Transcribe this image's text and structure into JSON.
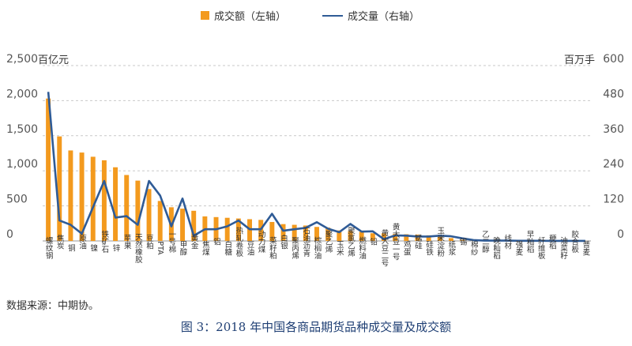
{
  "legend": {
    "bar_label": "成交额（左轴）",
    "line_label": "成交量（右轴）"
  },
  "units": {
    "left": "百亿元",
    "right": "百万手"
  },
  "source": "数据来源：中期协。",
  "caption": "图 3：2018 年中国各商品期货品种成交量及成交额",
  "colors": {
    "bar": "#F39A1E",
    "line": "#2F5B96",
    "grid": "#C9C9C9",
    "axis": "#555555"
  },
  "chart_data": {
    "type": "bar",
    "title": "",
    "categories": [
      "螺纹钢",
      "焦炭",
      "铜",
      "原油",
      "镍",
      "铁矿石",
      "锌",
      "苹果",
      "天然橡胶",
      "豆粕",
      "PTA",
      "一号棉",
      "甲醇",
      "黄金",
      "焦煤",
      "铝",
      "白糖",
      "热轧卷板",
      "豆油",
      "动力煤",
      "菜籽粕",
      "白银",
      "聚丙烯",
      "石油沥青",
      "棕榈油",
      "聚乙烯",
      "玉米",
      "聚氯乙烯",
      "燃料油",
      "铅",
      "黄大豆二号",
      "黄大豆一号",
      "鸡蛋",
      "锰硅",
      "硅铁",
      "玉米淀粉",
      "纸浆",
      "锡",
      "棉纱",
      "乙二醇",
      "晚籼稻",
      "线材",
      "强麦",
      "早籼稻",
      "纤维板",
      "粳稻",
      "油菜籽",
      "胶合板",
      "普麦"
    ],
    "left_axis": {
      "ylim": [
        0,
        2500
      ],
      "ticks": [
        "0",
        "500",
        "1,000",
        "1,500",
        "2,000",
        "2,500"
      ]
    },
    "right_axis": {
      "ylim": [
        0,
        600
      ],
      "ticks": [
        "0",
        "120",
        "240",
        "360",
        "480",
        "600"
      ]
    },
    "grid": true,
    "legend_position": "top",
    "series": [
      {
        "name": "成交额（左轴）",
        "type": "bar",
        "axis": "left",
        "values": [
          2030,
          1490,
          1290,
          1260,
          1200,
          1150,
          1050,
          940,
          860,
          740,
          570,
          480,
          460,
          430,
          350,
          340,
          330,
          320,
          310,
          300,
          270,
          240,
          230,
          220,
          200,
          190,
          150,
          140,
          130,
          110,
          110,
          100,
          95,
          90,
          80,
          60,
          40,
          15,
          10,
          10,
          6,
          5,
          5,
          4,
          3,
          3,
          2,
          2,
          1
        ]
      },
      {
        "name": "成交量（右轴）",
        "type": "line",
        "axis": "right",
        "values": [
          510,
          70,
          55,
          25,
          115,
          205,
          80,
          85,
          55,
          205,
          155,
          50,
          145,
          18,
          40,
          40,
          50,
          70,
          40,
          40,
          93,
          35,
          40,
          45,
          64,
          42,
          30,
          58,
          32,
          33,
          6,
          19,
          18,
          15,
          15,
          18,
          16,
          9,
          3,
          1,
          1,
          1,
          0.5,
          0.5,
          0.5,
          0.3,
          0.3,
          0.2,
          0.2
        ]
      }
    ]
  }
}
